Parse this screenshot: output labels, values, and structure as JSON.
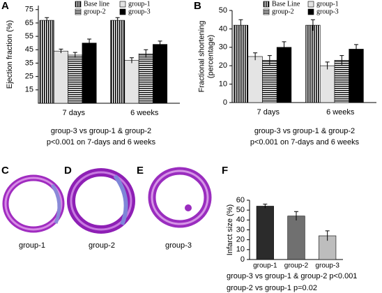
{
  "panels": {
    "letters": [
      "A",
      "B",
      "C",
      "D",
      "E",
      "F"
    ],
    "image_captions": [
      "group-1",
      "group-2",
      "group-3"
    ]
  },
  "chart_data": [
    {
      "type": "grouped_bar",
      "ylabel": [
        "Ejection fraction (%)"
      ],
      "categories": [
        "7 days",
        "6 weeks"
      ],
      "ylim": [
        5,
        78
      ],
      "yticks": [
        15,
        25,
        35,
        45,
        55,
        65,
        75
      ],
      "series": [
        {
          "name": "Base line",
          "color": "#000000",
          "hatch": "vertical",
          "values": [
            67,
            67
          ],
          "errors": [
            2,
            2
          ]
        },
        {
          "name": "group-1",
          "color": "#e4e4e4",
          "values": [
            44,
            37
          ],
          "errors": [
            1.5,
            2
          ]
        },
        {
          "name": "group-2",
          "color": "#000000",
          "hatch": "horizontal",
          "values": [
            41,
            42
          ],
          "errors": [
            2,
            3
          ]
        },
        {
          "name": "group-3",
          "color": "#000000",
          "values": [
            50,
            49
          ],
          "errors": [
            3,
            2.5
          ]
        }
      ],
      "notes": [
        "group-3 vs group-1 & group-2",
        "p<0.001 on 7-days and 6 weeks"
      ]
    },
    {
      "type": "grouped_bar",
      "ylabel": [
        "Fractional shortening",
        "(percentage)"
      ],
      "categories": [
        "7 days",
        "6 weeks"
      ],
      "ylim": [
        0,
        50
      ],
      "yticks": [
        0,
        10,
        20,
        30,
        40,
        50
      ],
      "series": [
        {
          "name": "Base Line",
          "color": "#000000",
          "hatch": "vertical",
          "values": [
            42,
            42
          ],
          "errors": [
            3,
            3
          ]
        },
        {
          "name": "group-1",
          "color": "#e4e4e4",
          "values": [
            25,
            20
          ],
          "errors": [
            2,
            2
          ]
        },
        {
          "name": "group-2",
          "color": "#000000",
          "hatch": "horizontal",
          "values": [
            23,
            23
          ],
          "errors": [
            2.5,
            2.5
          ]
        },
        {
          "name": "group-3",
          "color": "#000000",
          "values": [
            30,
            29
          ],
          "errors": [
            3,
            2.5
          ]
        }
      ],
      "notes": [
        "group-3 vs group-1 & group-2",
        "p<0.001 on 7-days and 6 weeks"
      ]
    },
    {
      "type": "bar",
      "ylabel": [
        "Infarct size (%)"
      ],
      "categories": [
        "group-1",
        "group-2",
        "group-3"
      ],
      "ylim": [
        0,
        60
      ],
      "yticks": [
        0,
        10,
        20,
        30,
        40,
        50,
        60
      ],
      "values": [
        54,
        44,
        24
      ],
      "errors": [
        2,
        4.5,
        5
      ],
      "colors": [
        "#2b2b2b",
        "#707070",
        "#bdbdbd"
      ],
      "notes": [
        "group-3 vs group-1 & group-2 p<0.001",
        "group-2 vs group-1 p=0.02"
      ]
    }
  ]
}
